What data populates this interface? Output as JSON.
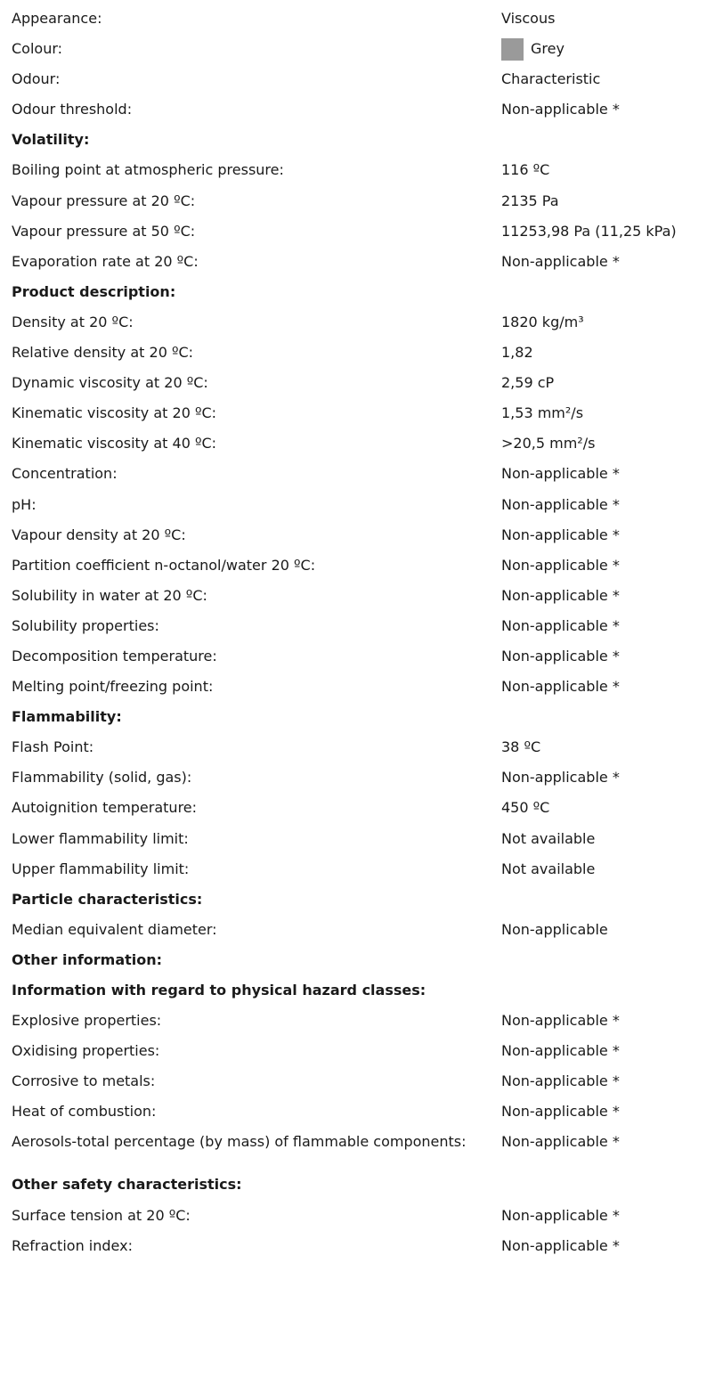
{
  "colors": {
    "swatch": "#9a9a9a"
  },
  "rows": [
    {
      "kind": "pair",
      "label": "Appearance:",
      "value": "Viscous"
    },
    {
      "kind": "pair",
      "label": "Colour:",
      "value": "Grey",
      "swatch": true
    },
    {
      "kind": "pair",
      "label": "Odour:",
      "value": "Characteristic"
    },
    {
      "kind": "pair",
      "label": "Odour threshold:",
      "value": "Non-applicable *"
    },
    {
      "kind": "heading",
      "label": "Volatility:"
    },
    {
      "kind": "pair",
      "label": "Boiling point at atmospheric pressure:",
      "value": "116 ºC"
    },
    {
      "kind": "pair",
      "label": "Vapour pressure at 20 ºC:",
      "value": "2135 Pa"
    },
    {
      "kind": "pair",
      "label": "Vapour pressure at 50 ºC:",
      "value": "11253,98 Pa  (11,25 kPa)"
    },
    {
      "kind": "pair",
      "label": "Evaporation rate at 20 ºC:",
      "value": "Non-applicable *"
    },
    {
      "kind": "heading",
      "label": "Product description:"
    },
    {
      "kind": "pair",
      "label": "Density at 20 ºC:",
      "value": "1820 kg/m³"
    },
    {
      "kind": "pair",
      "label": "Relative density at 20 ºC:",
      "value": "1,82"
    },
    {
      "kind": "pair",
      "label": "Dynamic viscosity at 20 ºC:",
      "value": "2,59 cP"
    },
    {
      "kind": "pair",
      "label": "Kinematic viscosity at 20 ºC:",
      "value": "1,53 mm²/s"
    },
    {
      "kind": "pair",
      "label": "Kinematic viscosity at 40 ºC:",
      "value": ">20,5 mm²/s"
    },
    {
      "kind": "pair",
      "label": "Concentration:",
      "value": "Non-applicable *"
    },
    {
      "kind": "pair",
      "label": "pH:",
      "value": "Non-applicable *"
    },
    {
      "kind": "pair",
      "label": "Vapour density at 20 ºC:",
      "value": "Non-applicable *"
    },
    {
      "kind": "pair",
      "label": "Partition coefficient n-octanol/water 20 ºC:",
      "value": "Non-applicable *"
    },
    {
      "kind": "pair",
      "label": "Solubility in water at 20 ºC:",
      "value": "Non-applicable *"
    },
    {
      "kind": "pair",
      "label": "Solubility properties:",
      "value": "Non-applicable *"
    },
    {
      "kind": "pair",
      "label": "Decomposition temperature:",
      "value": "Non-applicable *"
    },
    {
      "kind": "pair",
      "label": "Melting point/freezing point:",
      "value": "Non-applicable *"
    },
    {
      "kind": "heading",
      "label": "Flammability:"
    },
    {
      "kind": "pair",
      "label": "Flash Point:",
      "value": "38 ºC"
    },
    {
      "kind": "pair",
      "label": "Flammability (solid, gas):",
      "value": "Non-applicable *"
    },
    {
      "kind": "pair",
      "label": "Autoignition temperature:",
      "value": "450 ºC"
    },
    {
      "kind": "pair",
      "label": "Lower flammability limit:",
      "value": "Not available"
    },
    {
      "kind": "pair",
      "label": "Upper flammability limit:",
      "value": "Not available"
    },
    {
      "kind": "heading",
      "label": "Particle characteristics:"
    },
    {
      "kind": "pair",
      "label": "Median equivalent diameter:",
      "value": "Non-applicable"
    },
    {
      "kind": "heading",
      "label": "Other information:"
    },
    {
      "kind": "heading",
      "label": "Information with regard to physical hazard classes:"
    },
    {
      "kind": "pair",
      "label": "Explosive properties:",
      "value": "Non-applicable *"
    },
    {
      "kind": "pair",
      "label": "Oxidising properties:",
      "value": "Non-applicable *"
    },
    {
      "kind": "pair",
      "label": "Corrosive to metals:",
      "value": "Non-applicable *"
    },
    {
      "kind": "pair",
      "label": "Heat of combustion:",
      "value": "Non-applicable *"
    },
    {
      "kind": "pair",
      "label": "Aerosols-total percentage (by mass) of flammable components:",
      "value": "Non-applicable *",
      "tall": true
    },
    {
      "kind": "heading",
      "label": "Other safety characteristics:"
    },
    {
      "kind": "pair",
      "label": "Surface tension at 20 ºC:",
      "value": "Non-applicable *"
    },
    {
      "kind": "pair",
      "label": "Refraction index:",
      "value": "Non-applicable *"
    }
  ]
}
